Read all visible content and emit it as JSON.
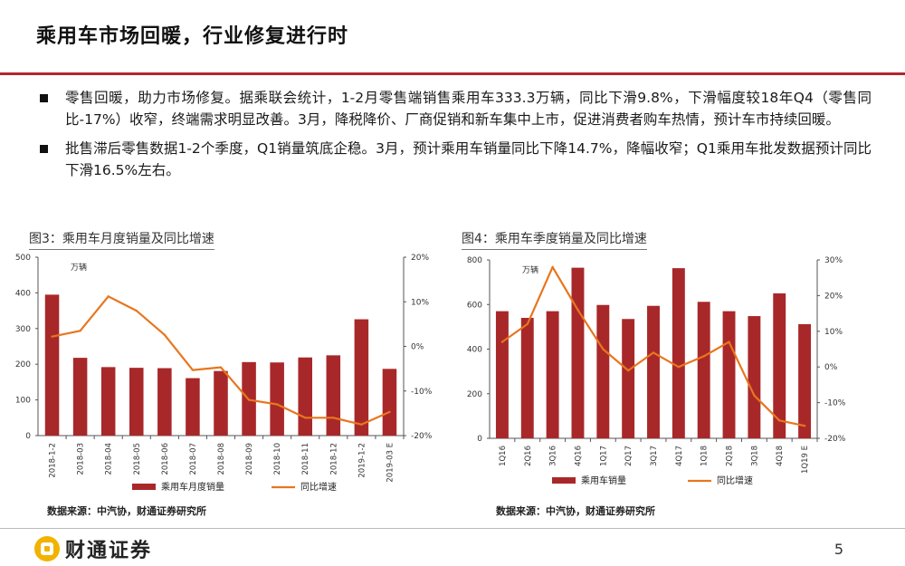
{
  "colors": {
    "accent": "#b3262e",
    "bar": "#a8282a",
    "line": "#e8761e"
  },
  "slide": {
    "title": "乘用车市场回暖，行业修复进行时",
    "bullets": [
      "零售回暖，助力市场修复。据乘联会统计，1-2月零售端销售乘用车333.3万辆，同比下滑9.8%，下滑幅度较18年Q4（零售同比-17%）收窄，终端需求明显改善。3月，降税降价、厂商促销和新车集中上市，促进消费者购车热情，预计车市持续回暖。",
      "批售滞后零售数据1-2个季度，Q1销量筑底企稳。3月，预计乘用车销量同比下降14.7%，降幅收窄；Q1乘用车批发数据预计同比下滑16.5%左右。"
    ],
    "page_number": "5",
    "logo_text": "财通证券"
  },
  "chart_data": [
    {
      "type": "bar",
      "title": "图3：乘用车月度销量及同比增速",
      "unit": "万辆",
      "source": "数据来源：中汽协，财通证券研究所",
      "categories": [
        "2018-1-2",
        "2018-03",
        "2018-04",
        "2018-05",
        "2018-06",
        "2018-07",
        "2018-08",
        "2018-09",
        "2018-10",
        "2018-11",
        "2018-12",
        "2019-1-2",
        "2019-03 E"
      ],
      "series": [
        {
          "name": "乘用车月度销量",
          "kind": "bar",
          "axis": "left",
          "values": [
            395,
            218,
            192,
            190,
            189,
            161,
            181,
            206,
            205,
            219,
            225,
            326,
            187
          ]
        },
        {
          "name": "同比增速",
          "kind": "line",
          "axis": "right",
          "values": [
            0.022,
            0.035,
            0.112,
            0.08,
            0.026,
            -0.053,
            -0.047,
            -0.12,
            -0.13,
            -0.16,
            -0.16,
            -0.175,
            -0.147
          ]
        }
      ],
      "ylim": [
        0,
        500
      ],
      "yticks": [
        0,
        100,
        200,
        300,
        400,
        500
      ],
      "y2lim": [
        -0.2,
        0.2
      ],
      "y2ticks": [
        "-20%",
        "-10%",
        "0%",
        "10%",
        "20%"
      ],
      "legend": [
        "乘用车月度销量",
        "同比增速"
      ]
    },
    {
      "type": "bar",
      "title": "图4：乘用车季度销量及同比增速",
      "unit": "万辆",
      "source": "数据来源：中汽协，财通证券研究所",
      "categories": [
        "1Q16",
        "2Q16",
        "3Q16",
        "4Q16",
        "1Q17",
        "2Q17",
        "3Q17",
        "4Q17",
        "1Q18",
        "2Q18",
        "3Q18",
        "4Q18",
        "1Q19 E"
      ],
      "series": [
        {
          "name": "乘用车销量",
          "kind": "bar",
          "axis": "left",
          "values": [
            570,
            540,
            570,
            765,
            598,
            535,
            594,
            763,
            612,
            570,
            548,
            650,
            512
          ]
        },
        {
          "name": "同比增速",
          "kind": "line",
          "axis": "right",
          "values": [
            0.07,
            0.12,
            0.28,
            0.16,
            0.05,
            -0.01,
            0.04,
            0,
            0.03,
            0.07,
            -0.08,
            -0.15,
            -0.165
          ]
        }
      ],
      "ylim": [
        0,
        800
      ],
      "yticks": [
        0,
        200,
        400,
        600,
        800
      ],
      "y2lim": [
        -0.2,
        0.3
      ],
      "y2ticks": [
        "-20%",
        "-10%",
        "0%",
        "10%",
        "20%",
        "30%"
      ],
      "legend": [
        "乘用车销量",
        "同比增速"
      ]
    }
  ]
}
